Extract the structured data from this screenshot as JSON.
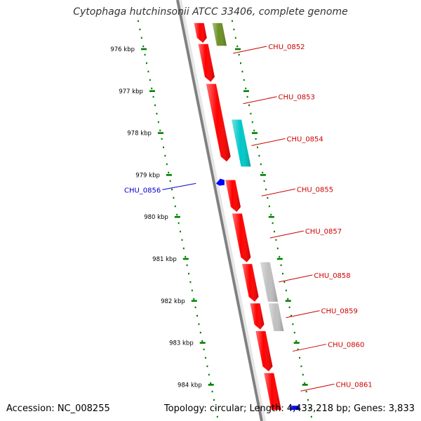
{
  "title": "Cytophaga hutchinsonii ATCC 33406, complete genome",
  "footer": {
    "accession": "Accession: NC_008255",
    "summary": "Topology: circular; Length: 4,433,218 bp; Genes: 3,833"
  },
  "colors": {
    "cds": "#ff0000",
    "olive": "#6b8e23",
    "cyan": "#00c8c8",
    "grey": "#c0c0c0",
    "blue": "#0000ff",
    "scale": "#008000",
    "label_red": "#cc0000",
    "label_blue": "#0000cc",
    "backbone": "#808080"
  },
  "scale_labels": [
    {
      "kbp": 976,
      "text": "976 kbp"
    },
    {
      "kbp": 977,
      "text": "977 kbp"
    },
    {
      "kbp": 978,
      "text": "978 kbp"
    },
    {
      "kbp": 979,
      "text": "979 kbp"
    },
    {
      "kbp": 980,
      "text": "980 kbp"
    },
    {
      "kbp": 981,
      "text": "981 kbp"
    },
    {
      "kbp": 982,
      "text": "982 kbp"
    },
    {
      "kbp": 983,
      "text": "983 kbp"
    },
    {
      "kbp": 984,
      "text": "984 kbp"
    }
  ],
  "features": [
    {
      "track": "forward",
      "color": "cds",
      "start": 975.38,
      "end": 975.85,
      "arrow": true
    },
    {
      "track": "forward",
      "color": "cds",
      "start": 975.88,
      "end": 976.78,
      "arrow": true
    },
    {
      "track": "forward",
      "color": "cds",
      "start": 976.83,
      "end": 978.68,
      "arrow": true
    },
    {
      "track": "forward",
      "color": "cds",
      "start": 979.12,
      "end": 979.88,
      "arrow": true
    },
    {
      "track": "forward",
      "color": "cds",
      "start": 979.92,
      "end": 981.08,
      "arrow": true
    },
    {
      "track": "forward",
      "color": "cds",
      "start": 981.12,
      "end": 982.02,
      "arrow": true
    },
    {
      "track": "forward",
      "color": "cds",
      "start": 982.06,
      "end": 982.68,
      "arrow": true
    },
    {
      "track": "forward",
      "color": "cds",
      "start": 982.72,
      "end": 983.68,
      "arrow": true
    },
    {
      "track": "forward",
      "color": "cds",
      "start": 983.72,
      "end": 984.6,
      "arrow": false
    },
    {
      "track": "outer",
      "color": "olive",
      "start": 975.38,
      "end": 975.92,
      "arrow": false
    },
    {
      "track": "outer",
      "color": "cyan",
      "start": 977.68,
      "end": 978.8,
      "arrow": false
    },
    {
      "track": "outer",
      "color": "grey",
      "start": 981.08,
      "end": 982.02,
      "arrow": false
    },
    {
      "track": "outer",
      "color": "grey",
      "start": 982.06,
      "end": 982.72,
      "arrow": false
    },
    {
      "track": "reverse",
      "color": "blue",
      "start": 979.08,
      "end": 979.26,
      "arrow": false
    },
    {
      "track": "outer",
      "color": "blue",
      "start": 984.5,
      "end": 984.6,
      "arrow": false
    }
  ],
  "gene_labels": [
    {
      "name": "CHU_0852",
      "pos": 976.1,
      "side": "right",
      "color": "label_red"
    },
    {
      "name": "CHU_0853",
      "pos": 977.3,
      "side": "right",
      "color": "label_red"
    },
    {
      "name": "CHU_0854",
      "pos": 978.3,
      "side": "right",
      "color": "label_red"
    },
    {
      "name": "CHU_0855",
      "pos": 979.5,
      "side": "right",
      "color": "label_red"
    },
    {
      "name": "CHU_0856",
      "pos": 979.2,
      "side": "left",
      "color": "label_blue"
    },
    {
      "name": "CHU_0857",
      "pos": 980.5,
      "side": "right",
      "color": "label_red"
    },
    {
      "name": "CHU_0858",
      "pos": 981.55,
      "side": "right",
      "color": "label_red"
    },
    {
      "name": "CHU_0859",
      "pos": 982.4,
      "side": "right",
      "color": "label_red"
    },
    {
      "name": "CHU_0860",
      "pos": 983.2,
      "side": "right",
      "color": "label_red"
    },
    {
      "name": "CHU_0861",
      "pos": 984.15,
      "side": "right",
      "color": "label_red"
    }
  ]
}
